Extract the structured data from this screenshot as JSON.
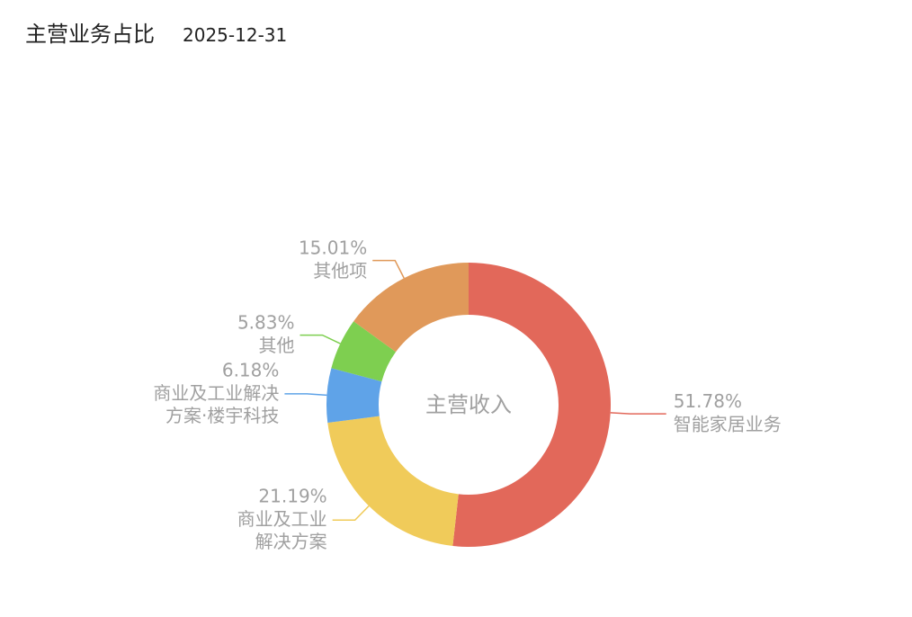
{
  "chart_data": {
    "type": "pie",
    "title": "主营业务占比",
    "subtitle": "2025-12-31",
    "center_label": "主营收入",
    "categories": [
      "智能家居业务",
      "商业及工业\n解决方案",
      "商业及工业解决\n方案·楼宇科技",
      "其他",
      "其他项"
    ],
    "values": [
      51.78,
      21.19,
      6.18,
      5.83,
      15.01
    ],
    "value_labels": [
      "51.78%",
      "21.19%",
      "6.18%",
      "5.83%",
      "15.01%"
    ],
    "colors": [
      "#e2685a",
      "#f0cb5a",
      "#5fa3e8",
      "#7ecf50",
      "#e0995a"
    ]
  }
}
